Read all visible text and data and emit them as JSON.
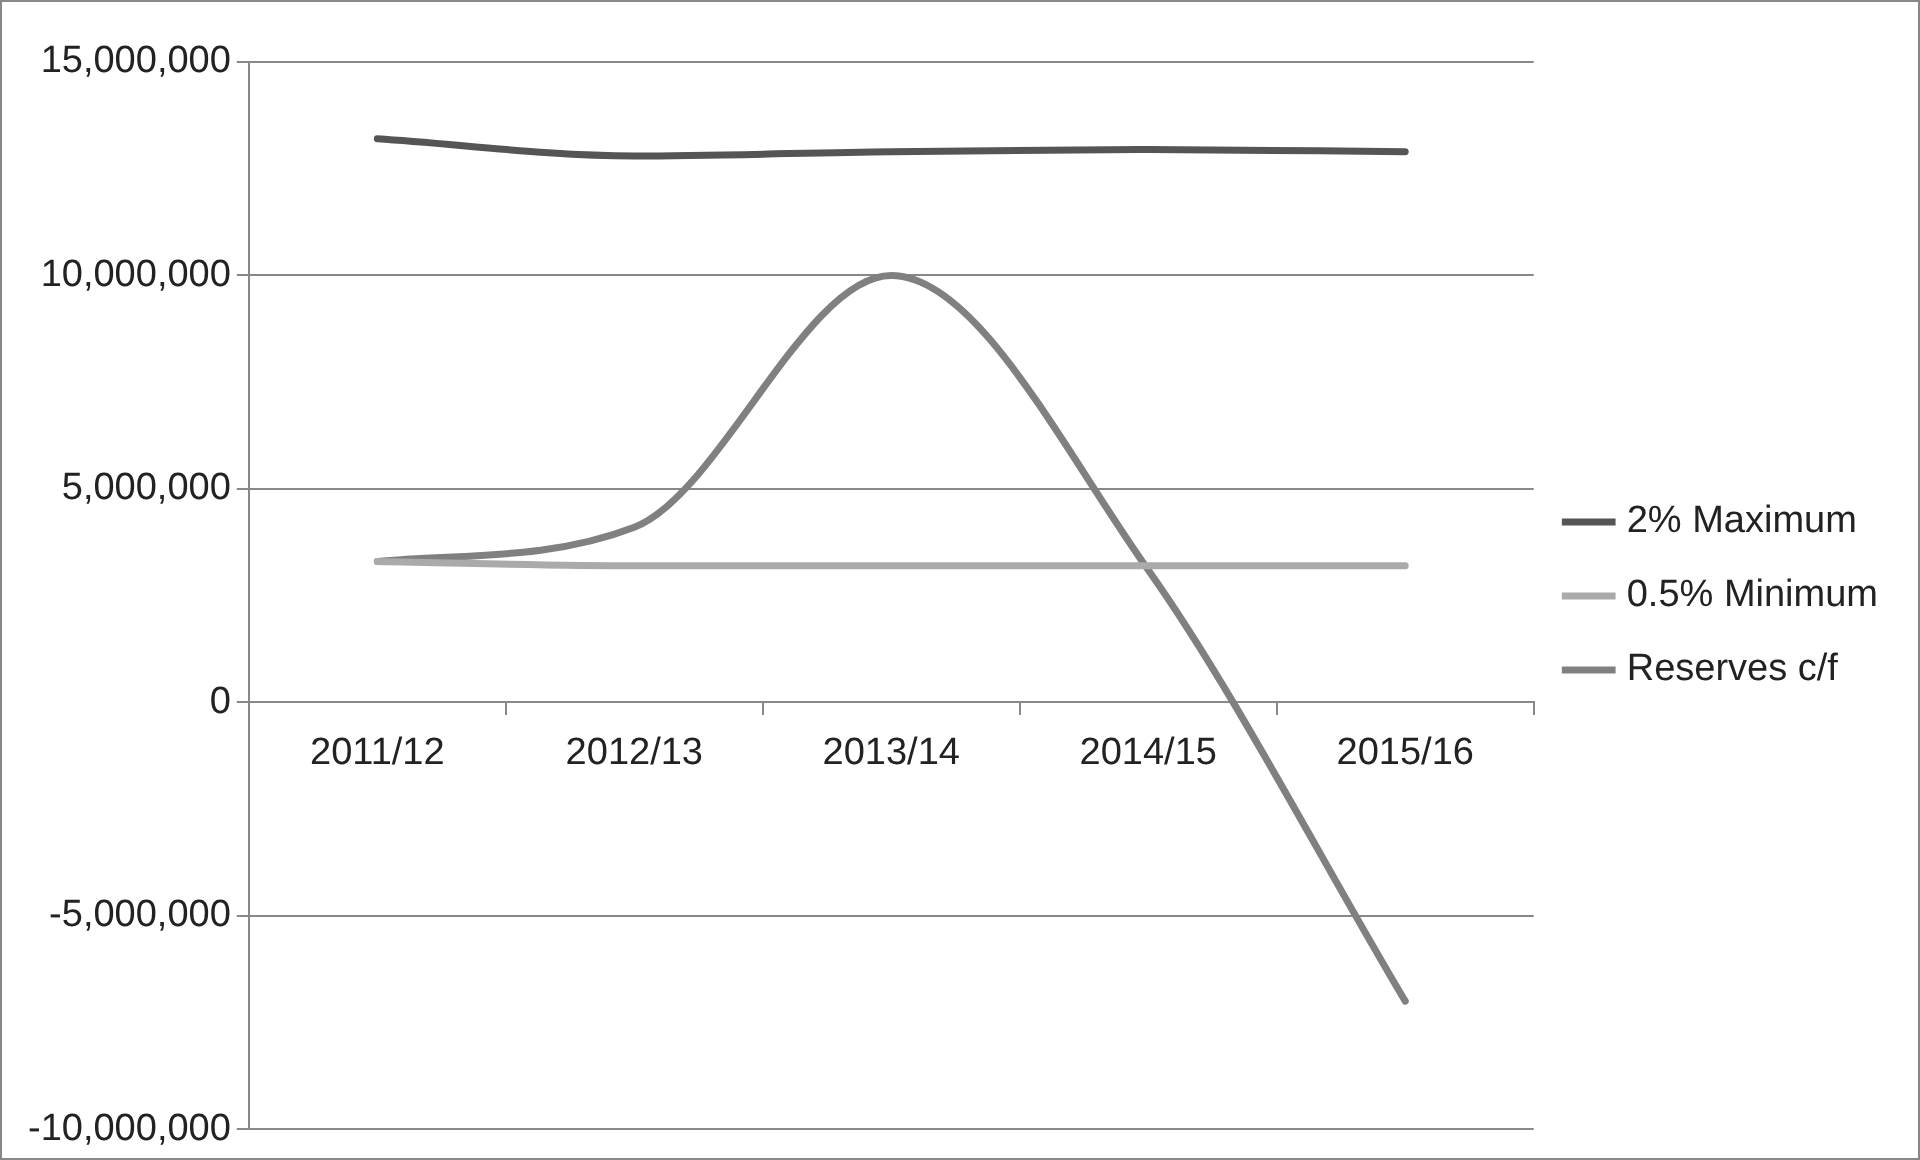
{
  "chart_data": {
    "type": "line",
    "categories": [
      "2011/12",
      "2012/13",
      "2013/14",
      "2014/15",
      "2015/16"
    ],
    "series": [
      {
        "name": "2% Maximum",
        "color": "#555555",
        "values": [
          13200000,
          12800000,
          12900000,
          12950000,
          12900000
        ]
      },
      {
        "name": "0.5% Minimum",
        "color": "#aaaaaa",
        "values": [
          3300000,
          3200000,
          3200000,
          3200000,
          3200000
        ]
      },
      {
        "name": "Reserves c/f",
        "color": "#808080",
        "values": [
          3300000,
          4100000,
          10000000,
          3100000,
          -7000000
        ]
      }
    ],
    "ylim": [
      -10000000,
      15000000
    ],
    "yticks": [
      {
        "value": -10000000,
        "label": "-10,000,000"
      },
      {
        "value": -5000000,
        "label": "-5,000,000"
      },
      {
        "value": 0,
        "label": "0"
      },
      {
        "value": 5000000,
        "label": "5,000,000"
      },
      {
        "value": 10000000,
        "label": "10,000,000"
      },
      {
        "value": 15000000,
        "label": "15,000,000"
      }
    ],
    "grid": "y",
    "legend": "right",
    "marker": "none",
    "line_style": "solid"
  }
}
